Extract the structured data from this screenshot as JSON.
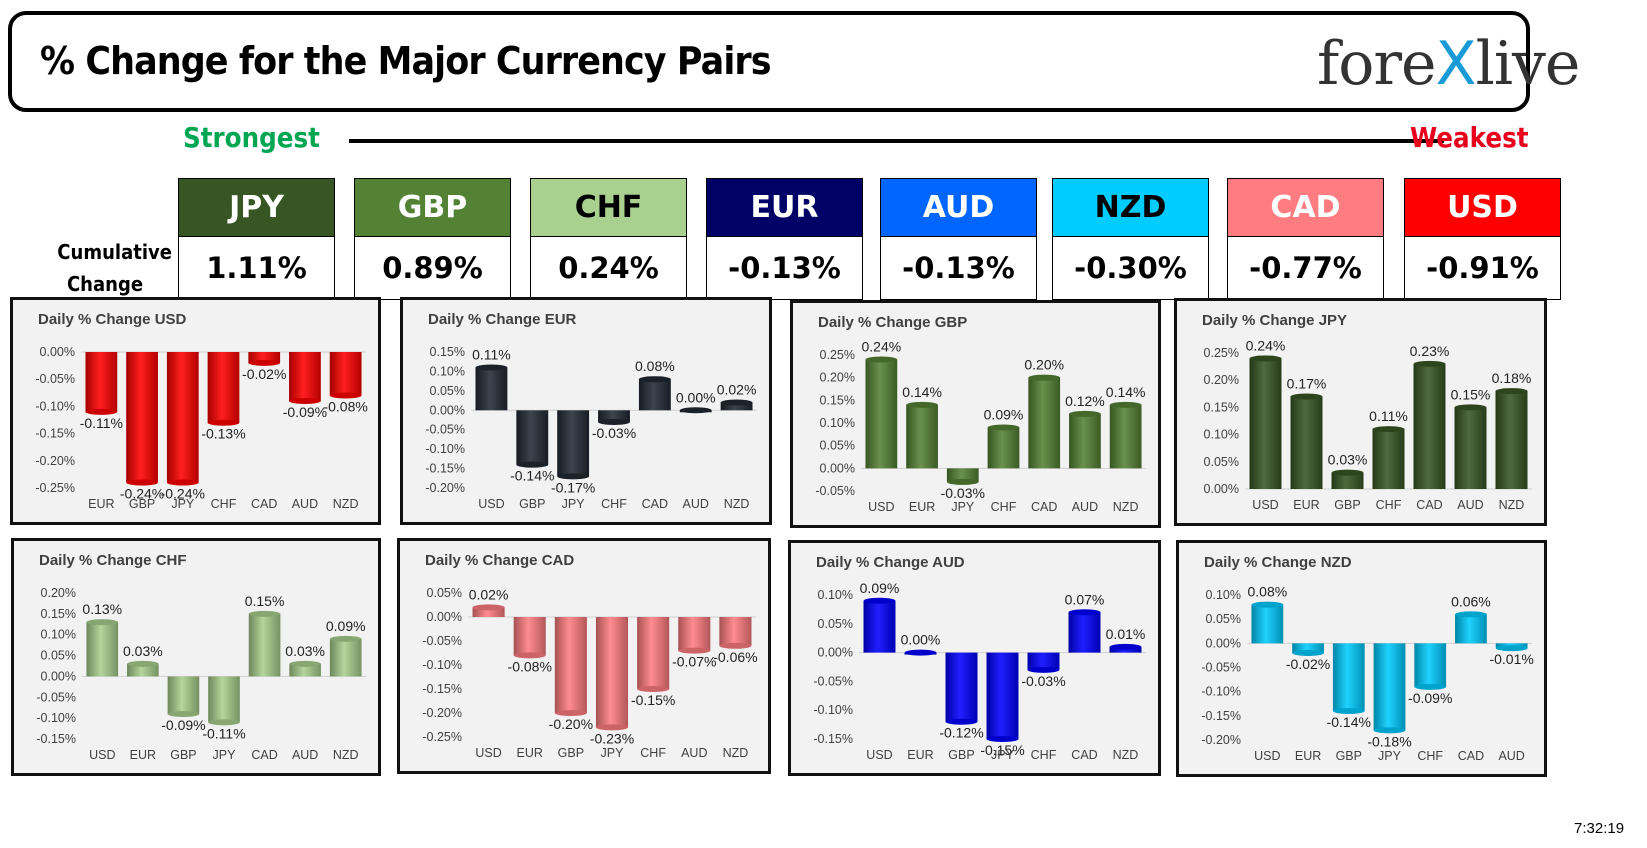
{
  "header": {
    "title": "% Change for the Major Currency Pairs",
    "logo_a": "fore",
    "logo_x": "X",
    "logo_b": "live"
  },
  "scale": {
    "strongest": "Strongest",
    "weakest": "Weakest",
    "strongest_color": "#00a651",
    "weakest_color": "#e8001c"
  },
  "cumulative": {
    "label_line1": "Cumulative",
    "label_line2": "Change",
    "currencies": [
      {
        "code": "JPY",
        "value": "1.11%",
        "bg": "#375623",
        "fg": "#ffffff"
      },
      {
        "code": "GBP",
        "value": "0.89%",
        "bg": "#548235",
        "fg": "#ffffff"
      },
      {
        "code": "CHF",
        "value": "0.24%",
        "bg": "#a9d08e",
        "fg": "#000000"
      },
      {
        "code": "EUR",
        "value": "-0.13%",
        "bg": "#000066",
        "fg": "#ffffff"
      },
      {
        "code": "AUD",
        "value": "-0.13%",
        "bg": "#0066ff",
        "fg": "#ffffff"
      },
      {
        "code": "NZD",
        "value": "-0.30%",
        "bg": "#00ccff",
        "fg": "#000000"
      },
      {
        "code": "CAD",
        "value": "-0.77%",
        "bg": "#ff7c80",
        "fg": "#ffffff"
      },
      {
        "code": "USD",
        "value": "-0.91%",
        "bg": "#ff0000",
        "fg": "#ffffff"
      }
    ]
  },
  "chart_data": [
    {
      "type": "bar",
      "title": "Daily % Change USD",
      "color": "#ff0000",
      "categories": [
        "EUR",
        "GBP",
        "JPY",
        "CHF",
        "CAD",
        "AUD",
        "NZD"
      ],
      "values": [
        -0.11,
        -0.24,
        -0.24,
        -0.13,
        -0.02,
        -0.09,
        -0.08
      ],
      "labels": [
        "-0.11%",
        "-0.24%",
        "-0.24%",
        "-0.13%",
        "-0.02%",
        "-0.09%",
        "-0.08%"
      ],
      "ylim": [
        -0.25,
        0.0
      ],
      "yticks": [
        "0.00%",
        "-0.05%",
        "-0.10%",
        "-0.15%",
        "-0.20%",
        "-0.25%"
      ]
    },
    {
      "type": "bar",
      "title": "Daily % Change EUR",
      "color": "#222a35",
      "categories": [
        "USD",
        "GBP",
        "JPY",
        "CHF",
        "CAD",
        "AUD",
        "NZD"
      ],
      "values": [
        0.11,
        -0.14,
        -0.17,
        -0.03,
        0.08,
        0.0,
        0.02
      ],
      "labels": [
        "0.11%",
        "-0.14%",
        "-0.17%",
        "-0.03%",
        "0.08%",
        "0.00%",
        "0.02%"
      ],
      "ylim": [
        -0.2,
        0.15
      ],
      "yticks": [
        "0.15%",
        "0.10%",
        "0.05%",
        "0.00%",
        "-0.05%",
        "-0.10%",
        "-0.15%",
        "-0.20%"
      ]
    },
    {
      "type": "bar",
      "title": "Daily % Change GBP",
      "color": "#548235",
      "categories": [
        "USD",
        "EUR",
        "JPY",
        "CHF",
        "CAD",
        "AUD",
        "NZD"
      ],
      "values": [
        0.24,
        0.14,
        -0.03,
        0.09,
        0.2,
        0.12,
        0.14
      ],
      "labels": [
        "0.24%",
        "0.14%",
        "-0.03%",
        "0.09%",
        "0.20%",
        "0.12%",
        "0.14%"
      ],
      "ylim": [
        -0.05,
        0.25
      ],
      "yticks": [
        "0.25%",
        "0.20%",
        "0.15%",
        "0.10%",
        "0.05%",
        "0.00%",
        "-0.05%"
      ]
    },
    {
      "type": "bar",
      "title": "Daily % Change JPY",
      "color": "#375623",
      "categories": [
        "USD",
        "EUR",
        "GBP",
        "CHF",
        "CAD",
        "AUD",
        "NZD"
      ],
      "values": [
        0.24,
        0.17,
        0.03,
        0.11,
        0.23,
        0.15,
        0.18
      ],
      "labels": [
        "0.24%",
        "0.17%",
        "0.03%",
        "0.11%",
        "0.23%",
        "0.15%",
        "0.18%"
      ],
      "ylim": [
        0.0,
        0.25
      ],
      "yticks": [
        "0.25%",
        "0.20%",
        "0.15%",
        "0.10%",
        "0.05%",
        "0.00%"
      ]
    },
    {
      "type": "bar",
      "title": "Daily % Change CHF",
      "color": "#a9d08e",
      "categories": [
        "USD",
        "EUR",
        "GBP",
        "JPY",
        "CAD",
        "AUD",
        "NZD"
      ],
      "values": [
        0.13,
        0.03,
        -0.09,
        -0.11,
        0.15,
        0.03,
        0.09
      ],
      "labels": [
        "0.13%",
        "0.03%",
        "-0.09%",
        "-0.11%",
        "0.15%",
        "0.03%",
        "0.09%"
      ],
      "ylim": [
        -0.15,
        0.2
      ],
      "yticks": [
        "0.20%",
        "0.15%",
        "0.10%",
        "0.05%",
        "0.00%",
        "-0.05%",
        "-0.10%",
        "-0.15%"
      ]
    },
    {
      "type": "bar",
      "title": "Daily % Change CAD",
      "color": "#ff7c80",
      "categories": [
        "USD",
        "EUR",
        "GBP",
        "JPY",
        "CHF",
        "AUD",
        "NZD"
      ],
      "values": [
        0.02,
        -0.08,
        -0.2,
        -0.23,
        -0.15,
        -0.07,
        -0.06
      ],
      "labels": [
        "0.02%",
        "-0.08%",
        "-0.20%",
        "-0.23%",
        "-0.15%",
        "-0.07%",
        "-0.06%"
      ],
      "ylim": [
        -0.25,
        0.05
      ],
      "yticks": [
        "0.05%",
        "0.00%",
        "-0.05%",
        "-0.10%",
        "-0.15%",
        "-0.20%",
        "-0.25%"
      ]
    },
    {
      "type": "bar",
      "title": "Daily % Change AUD",
      "color": "#0000ff",
      "categories": [
        "USD",
        "EUR",
        "GBP",
        "JPY",
        "CHF",
        "CAD",
        "NZD"
      ],
      "values": [
        0.09,
        0.0,
        -0.12,
        -0.15,
        -0.03,
        0.07,
        0.01
      ],
      "labels": [
        "0.09%",
        "0.00%",
        "-0.12%",
        "-0.15%",
        "-0.03%",
        "0.07%",
        "0.01%"
      ],
      "ylim": [
        -0.15,
        0.1
      ],
      "yticks": [
        "0.10%",
        "0.05%",
        "0.00%",
        "-0.05%",
        "-0.10%",
        "-0.15%"
      ]
    },
    {
      "type": "bar",
      "title": "Daily % Change NZD",
      "color": "#00ccff",
      "categories": [
        "USD",
        "EUR",
        "GBP",
        "JPY",
        "CHF",
        "CAD",
        "AUD"
      ],
      "values": [
        0.08,
        -0.02,
        -0.14,
        -0.18,
        -0.09,
        0.06,
        -0.01
      ],
      "labels": [
        "0.08%",
        "-0.02%",
        "-0.14%",
        "-0.18%",
        "-0.09%",
        "0.06%",
        "-0.01%"
      ],
      "ylim": [
        -0.2,
        0.1
      ],
      "yticks": [
        "0.10%",
        "0.05%",
        "0.00%",
        "-0.05%",
        "-0.10%",
        "-0.15%",
        "-0.20%"
      ]
    }
  ],
  "footer": {
    "time": "7:32:19"
  }
}
